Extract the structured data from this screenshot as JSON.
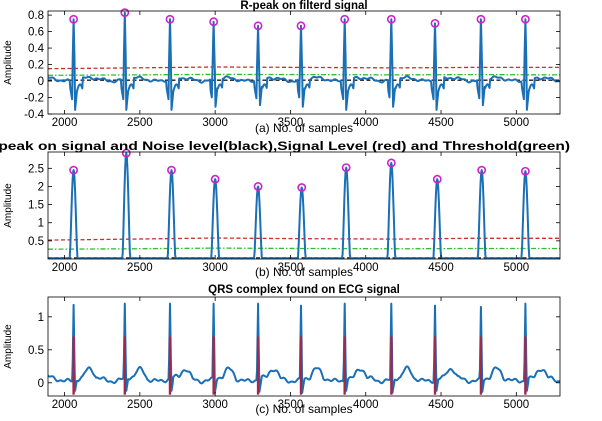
{
  "chart_data": [
    {
      "type": "line",
      "title": "R-peak on filterd signal",
      "ylabel": "Amplitude",
      "caption": "(a) No. of samples",
      "xlim": [
        1890,
        5290
      ],
      "ylim": [
        -0.4,
        0.85
      ],
      "xticks": [
        2000,
        2500,
        3000,
        3500,
        4000,
        4500,
        5000
      ],
      "yticks": [
        -0.4,
        -0.2,
        0,
        0.2,
        0.4,
        0.6,
        0.8
      ],
      "ytick_labels": [
        "-0.4",
        "-0.2",
        "0",
        "0.2",
        "0.4",
        "0.6",
        "0.8"
      ],
      "peaks": {
        "x": [
          2060,
          2400,
          2700,
          2990,
          3285,
          3570,
          3860,
          4170,
          4460,
          4765,
          5060
        ],
        "y": [
          0.75,
          0.83,
          0.75,
          0.72,
          0.67,
          0.67,
          0.75,
          0.75,
          0.7,
          0.75,
          0.75
        ]
      },
      "series": [
        {
          "name": "Signal Level",
          "color": "#c8302c",
          "style": "dashed",
          "x": [
            1890,
            2450,
            3000,
            3600,
            4200,
            4700,
            5290
          ],
          "y": [
            0.15,
            0.16,
            0.17,
            0.165,
            0.16,
            0.165,
            0.165
          ]
        },
        {
          "name": "Threshold",
          "color": "#2fbf2f",
          "style": "dashdot",
          "x": [
            1890,
            2450,
            3000,
            3600,
            4200,
            4700,
            5290
          ],
          "y": [
            0.07,
            0.075,
            0.08,
            0.078,
            0.075,
            0.078,
            0.075
          ]
        },
        {
          "name": "Noise level",
          "color": "#1a1a1a",
          "style": "dashed",
          "x": [
            1890,
            5290
          ],
          "y": [
            0.01,
            0.01
          ]
        }
      ]
    },
    {
      "type": "line",
      "title": "R-peak on signal and Noise level(black),Signal Level (red) and Threshold(green)",
      "ylabel": "Amplitude",
      "caption": "(b) No. of samples",
      "xlim": [
        1890,
        5290
      ],
      "ylim": [
        0,
        2.95
      ],
      "xticks": [
        2000,
        2500,
        3000,
        3500,
        4000,
        4500,
        5000
      ],
      "yticks": [
        0.5,
        1,
        1.5,
        2,
        2.5
      ],
      "ytick_labels": [
        "0.5",
        "1",
        "1.5",
        "2",
        "2.5"
      ],
      "peaks": {
        "x": [
          2060,
          2410,
          2710,
          3000,
          3285,
          3575,
          3870,
          4170,
          4475,
          4770,
          5060
        ],
        "y": [
          2.45,
          2.92,
          2.45,
          2.2,
          2.0,
          1.97,
          2.52,
          2.65,
          2.2,
          2.45,
          2.42
        ]
      },
      "series": [
        {
          "name": "Signal Level",
          "color": "#c8302c",
          "style": "dashed",
          "x": [
            1890,
            2450,
            3000,
            3600,
            4200,
            4700,
            5290
          ],
          "y": [
            0.52,
            0.55,
            0.58,
            0.56,
            0.55,
            0.57,
            0.57
          ]
        },
        {
          "name": "Threshold",
          "color": "#2fbf2f",
          "style": "dashdot",
          "x": [
            1890,
            2450,
            3000,
            3600,
            4200,
            4700,
            5290
          ],
          "y": [
            0.27,
            0.28,
            0.3,
            0.29,
            0.28,
            0.29,
            0.29
          ]
        },
        {
          "name": "Noise level",
          "color": "#1a1a1a",
          "style": "dashed",
          "x": [
            1890,
            5290
          ],
          "y": [
            0.03,
            0.03
          ]
        }
      ]
    },
    {
      "type": "line",
      "title": "QRS complex found on ECG signal",
      "ylabel": "Amplitude",
      "caption": "(c) No. of samples",
      "xlim": [
        1890,
        5290
      ],
      "ylim": [
        -0.2,
        1.3
      ],
      "xticks": [
        2000,
        2500,
        3000,
        3500,
        4000,
        4500,
        5000
      ],
      "yticks": [
        0,
        0.5,
        1
      ],
      "ytick_labels": [
        "0",
        "0.5",
        "1"
      ],
      "peaks": {
        "x": [
          2060,
          2400,
          2700,
          2990,
          3285,
          3570,
          3860,
          4170,
          4460,
          4765,
          5060
        ],
        "y": [
          1.18,
          1.2,
          1.2,
          1.2,
          1.2,
          1.17,
          1.2,
          1.2,
          1.17,
          1.15,
          1.2
        ]
      },
      "qrs_markers": {
        "color": "#a3294a",
        "x": [
          2060,
          2400,
          2700,
          2990,
          3285,
          3570,
          3860,
          4170,
          4460,
          4765,
          5060
        ],
        "top": 0.7
      }
    }
  ]
}
